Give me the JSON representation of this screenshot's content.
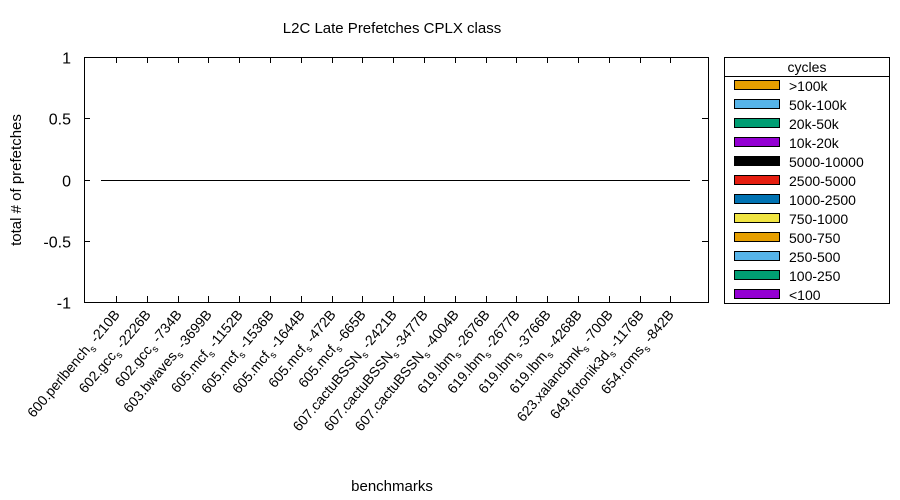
{
  "chart_data": {
    "type": "bar",
    "title": "L2C Late Prefetches CPLX class",
    "xlabel": "benchmarks",
    "ylabel": "total # of prefetches",
    "ylim": [
      -1,
      1
    ],
    "yticks": [
      {
        "value": 1,
        "label": "1"
      },
      {
        "value": 0.5,
        "label": "0.5"
      },
      {
        "value": 0,
        "label": "0"
      },
      {
        "value": -0.5,
        "label": "-0.5"
      },
      {
        "value": -1,
        "label": "-1"
      }
    ],
    "categories": [
      {
        "name": "600.perlbench",
        "sub": "s",
        "suffix": " -210B"
      },
      {
        "name": "602.gcc",
        "sub": "s",
        "suffix": " -2226B"
      },
      {
        "name": "602.gcc",
        "sub": "s",
        "suffix": " -734B"
      },
      {
        "name": "603.bwaves",
        "sub": "s",
        "suffix": " -3699B"
      },
      {
        "name": "605.mcf",
        "sub": "s",
        "suffix": " -1152B"
      },
      {
        "name": "605.mcf",
        "sub": "s",
        "suffix": " -1536B"
      },
      {
        "name": "605.mcf",
        "sub": "s",
        "suffix": " -1644B"
      },
      {
        "name": "605.mcf",
        "sub": "s",
        "suffix": " -472B"
      },
      {
        "name": "605.mcf",
        "sub": "s",
        "suffix": " -665B"
      },
      {
        "name": "607.cactuBSSN",
        "sub": "s",
        "suffix": " -2421B"
      },
      {
        "name": "607.cactuBSSN",
        "sub": "s",
        "suffix": " -3477B"
      },
      {
        "name": "607.cactuBSSN",
        "sub": "s",
        "suffix": " -4004B"
      },
      {
        "name": "619.lbm",
        "sub": "s",
        "suffix": " -2676B"
      },
      {
        "name": "619.lbm",
        "sub": "s",
        "suffix": " -2677B"
      },
      {
        "name": "619.lbm",
        "sub": "s",
        "suffix": " -3766B"
      },
      {
        "name": "619.lbm",
        "sub": "s",
        "suffix": " -4268B"
      },
      {
        "name": "623.xalancbmk",
        "sub": "s",
        "suffix": " -700B"
      },
      {
        "name": "649.fotonik3d",
        "sub": "s",
        "suffix": " -1176B"
      },
      {
        "name": "654.roms",
        "sub": "s",
        "suffix": " -842B"
      }
    ],
    "series": [
      {
        "name": ">100k",
        "color": "#e69f00",
        "values": [
          0,
          0,
          0,
          0,
          0,
          0,
          0,
          0,
          0,
          0,
          0,
          0,
          0,
          0,
          0,
          0,
          0,
          0,
          0
        ]
      },
      {
        "name": "50k-100k",
        "color": "#56b4e9",
        "values": [
          0,
          0,
          0,
          0,
          0,
          0,
          0,
          0,
          0,
          0,
          0,
          0,
          0,
          0,
          0,
          0,
          0,
          0,
          0
        ]
      },
      {
        "name": "20k-50k",
        "color": "#009e73",
        "values": [
          0,
          0,
          0,
          0,
          0,
          0,
          0,
          0,
          0,
          0,
          0,
          0,
          0,
          0,
          0,
          0,
          0,
          0,
          0
        ]
      },
      {
        "name": "10k-20k",
        "color": "#9400d3",
        "values": [
          0,
          0,
          0,
          0,
          0,
          0,
          0,
          0,
          0,
          0,
          0,
          0,
          0,
          0,
          0,
          0,
          0,
          0,
          0
        ]
      },
      {
        "name": "5000-10000",
        "color": "#000000",
        "values": [
          0,
          0,
          0,
          0,
          0,
          0,
          0,
          0,
          0,
          0,
          0,
          0,
          0,
          0,
          0,
          0,
          0,
          0,
          0
        ]
      },
      {
        "name": "2500-5000",
        "color": "#e51e10",
        "values": [
          0,
          0,
          0,
          0,
          0,
          0,
          0,
          0,
          0,
          0,
          0,
          0,
          0,
          0,
          0,
          0,
          0,
          0,
          0
        ]
      },
      {
        "name": "1000-2500",
        "color": "#0072b2",
        "values": [
          0,
          0,
          0,
          0,
          0,
          0,
          0,
          0,
          0,
          0,
          0,
          0,
          0,
          0,
          0,
          0,
          0,
          0,
          0
        ]
      },
      {
        "name": "750-1000",
        "color": "#f0e442",
        "values": [
          0,
          0,
          0,
          0,
          0,
          0,
          0,
          0,
          0,
          0,
          0,
          0,
          0,
          0,
          0,
          0,
          0,
          0,
          0
        ]
      },
      {
        "name": "500-750",
        "color": "#e69f00",
        "values": [
          0,
          0,
          0,
          0,
          0,
          0,
          0,
          0,
          0,
          0,
          0,
          0,
          0,
          0,
          0,
          0,
          0,
          0,
          0
        ]
      },
      {
        "name": "250-500",
        "color": "#56b4e9",
        "values": [
          0,
          0,
          0,
          0,
          0,
          0,
          0,
          0,
          0,
          0,
          0,
          0,
          0,
          0,
          0,
          0,
          0,
          0,
          0
        ]
      },
      {
        "name": "100-250",
        "color": "#009e73",
        "values": [
          0,
          0,
          0,
          0,
          0,
          0,
          0,
          0,
          0,
          0,
          0,
          0,
          0,
          0,
          0,
          0,
          0,
          0,
          0
        ]
      },
      {
        "name": "<100",
        "color": "#9400d3",
        "values": [
          0,
          0,
          0,
          0,
          0,
          0,
          0,
          0,
          0,
          0,
          0,
          0,
          0,
          0,
          0,
          0,
          0,
          0,
          0
        ]
      }
    ],
    "legend": {
      "title": "cycles",
      "placement": "right"
    },
    "stacked": true,
    "grid": false
  }
}
